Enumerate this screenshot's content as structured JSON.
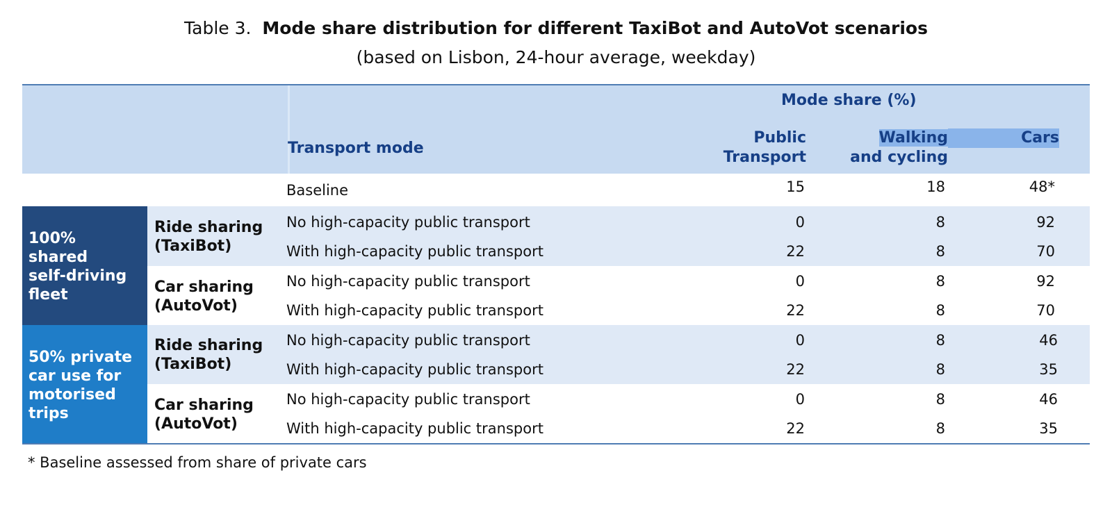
{
  "caption": {
    "label": "Table 3.",
    "title": "Mode share distribution for different TaxiBot and AutoVot scenarios",
    "subtitle": "(based on Lisbon, 24-hour average, weekday)"
  },
  "header": {
    "group": "Mode share (%)",
    "transport_mode": "Transport mode",
    "col1_line1": "Public",
    "col1_line2": "Transport",
    "col2_line1": "Walking",
    "col2_line2": "and cycling",
    "col3": "Cars"
  },
  "baseline": {
    "label": "Baseline",
    "pt": "15",
    "walk": "18",
    "cars": "48*"
  },
  "groups": [
    {
      "label_lines": [
        "100%",
        "shared",
        "self-driving",
        "fleet"
      ],
      "subs": [
        {
          "line1": "Ride sharing",
          "line2": "(TaxiBot)",
          "rows": [
            {
              "mode": "No high-capacity public transport",
              "pt": "0",
              "walk": "8",
              "cars": "92"
            },
            {
              "mode": "With high-capacity public transport",
              "pt": "22",
              "walk": "8",
              "cars": "70"
            }
          ]
        },
        {
          "line1": "Car sharing",
          "line2": "(AutoVot)",
          "rows": [
            {
              "mode": "No high-capacity public transport",
              "pt": "0",
              "walk": "8",
              "cars": "92"
            },
            {
              "mode": "With high-capacity public transport",
              "pt": "22",
              "walk": "8",
              "cars": "70"
            }
          ]
        }
      ]
    },
    {
      "label_lines": [
        "50% private",
        "car use for",
        "motorised",
        "trips"
      ],
      "subs": [
        {
          "line1": "Ride sharing",
          "line2": "(TaxiBot)",
          "rows": [
            {
              "mode": "No high-capacity public transport",
              "pt": "0",
              "walk": "8",
              "cars": "46"
            },
            {
              "mode": "With high-capacity public transport",
              "pt": "22",
              "walk": "8",
              "cars": "35"
            }
          ]
        },
        {
          "line1": "Car sharing",
          "line2": "(AutoVot)",
          "rows": [
            {
              "mode": "No high-capacity public transport",
              "pt": "0",
              "walk": "8",
              "cars": "46"
            },
            {
              "mode": "With high-capacity public transport",
              "pt": "22",
              "walk": "8",
              "cars": "35"
            }
          ]
        }
      ]
    }
  ],
  "footnote": "*  Baseline assessed from share of private cars"
}
